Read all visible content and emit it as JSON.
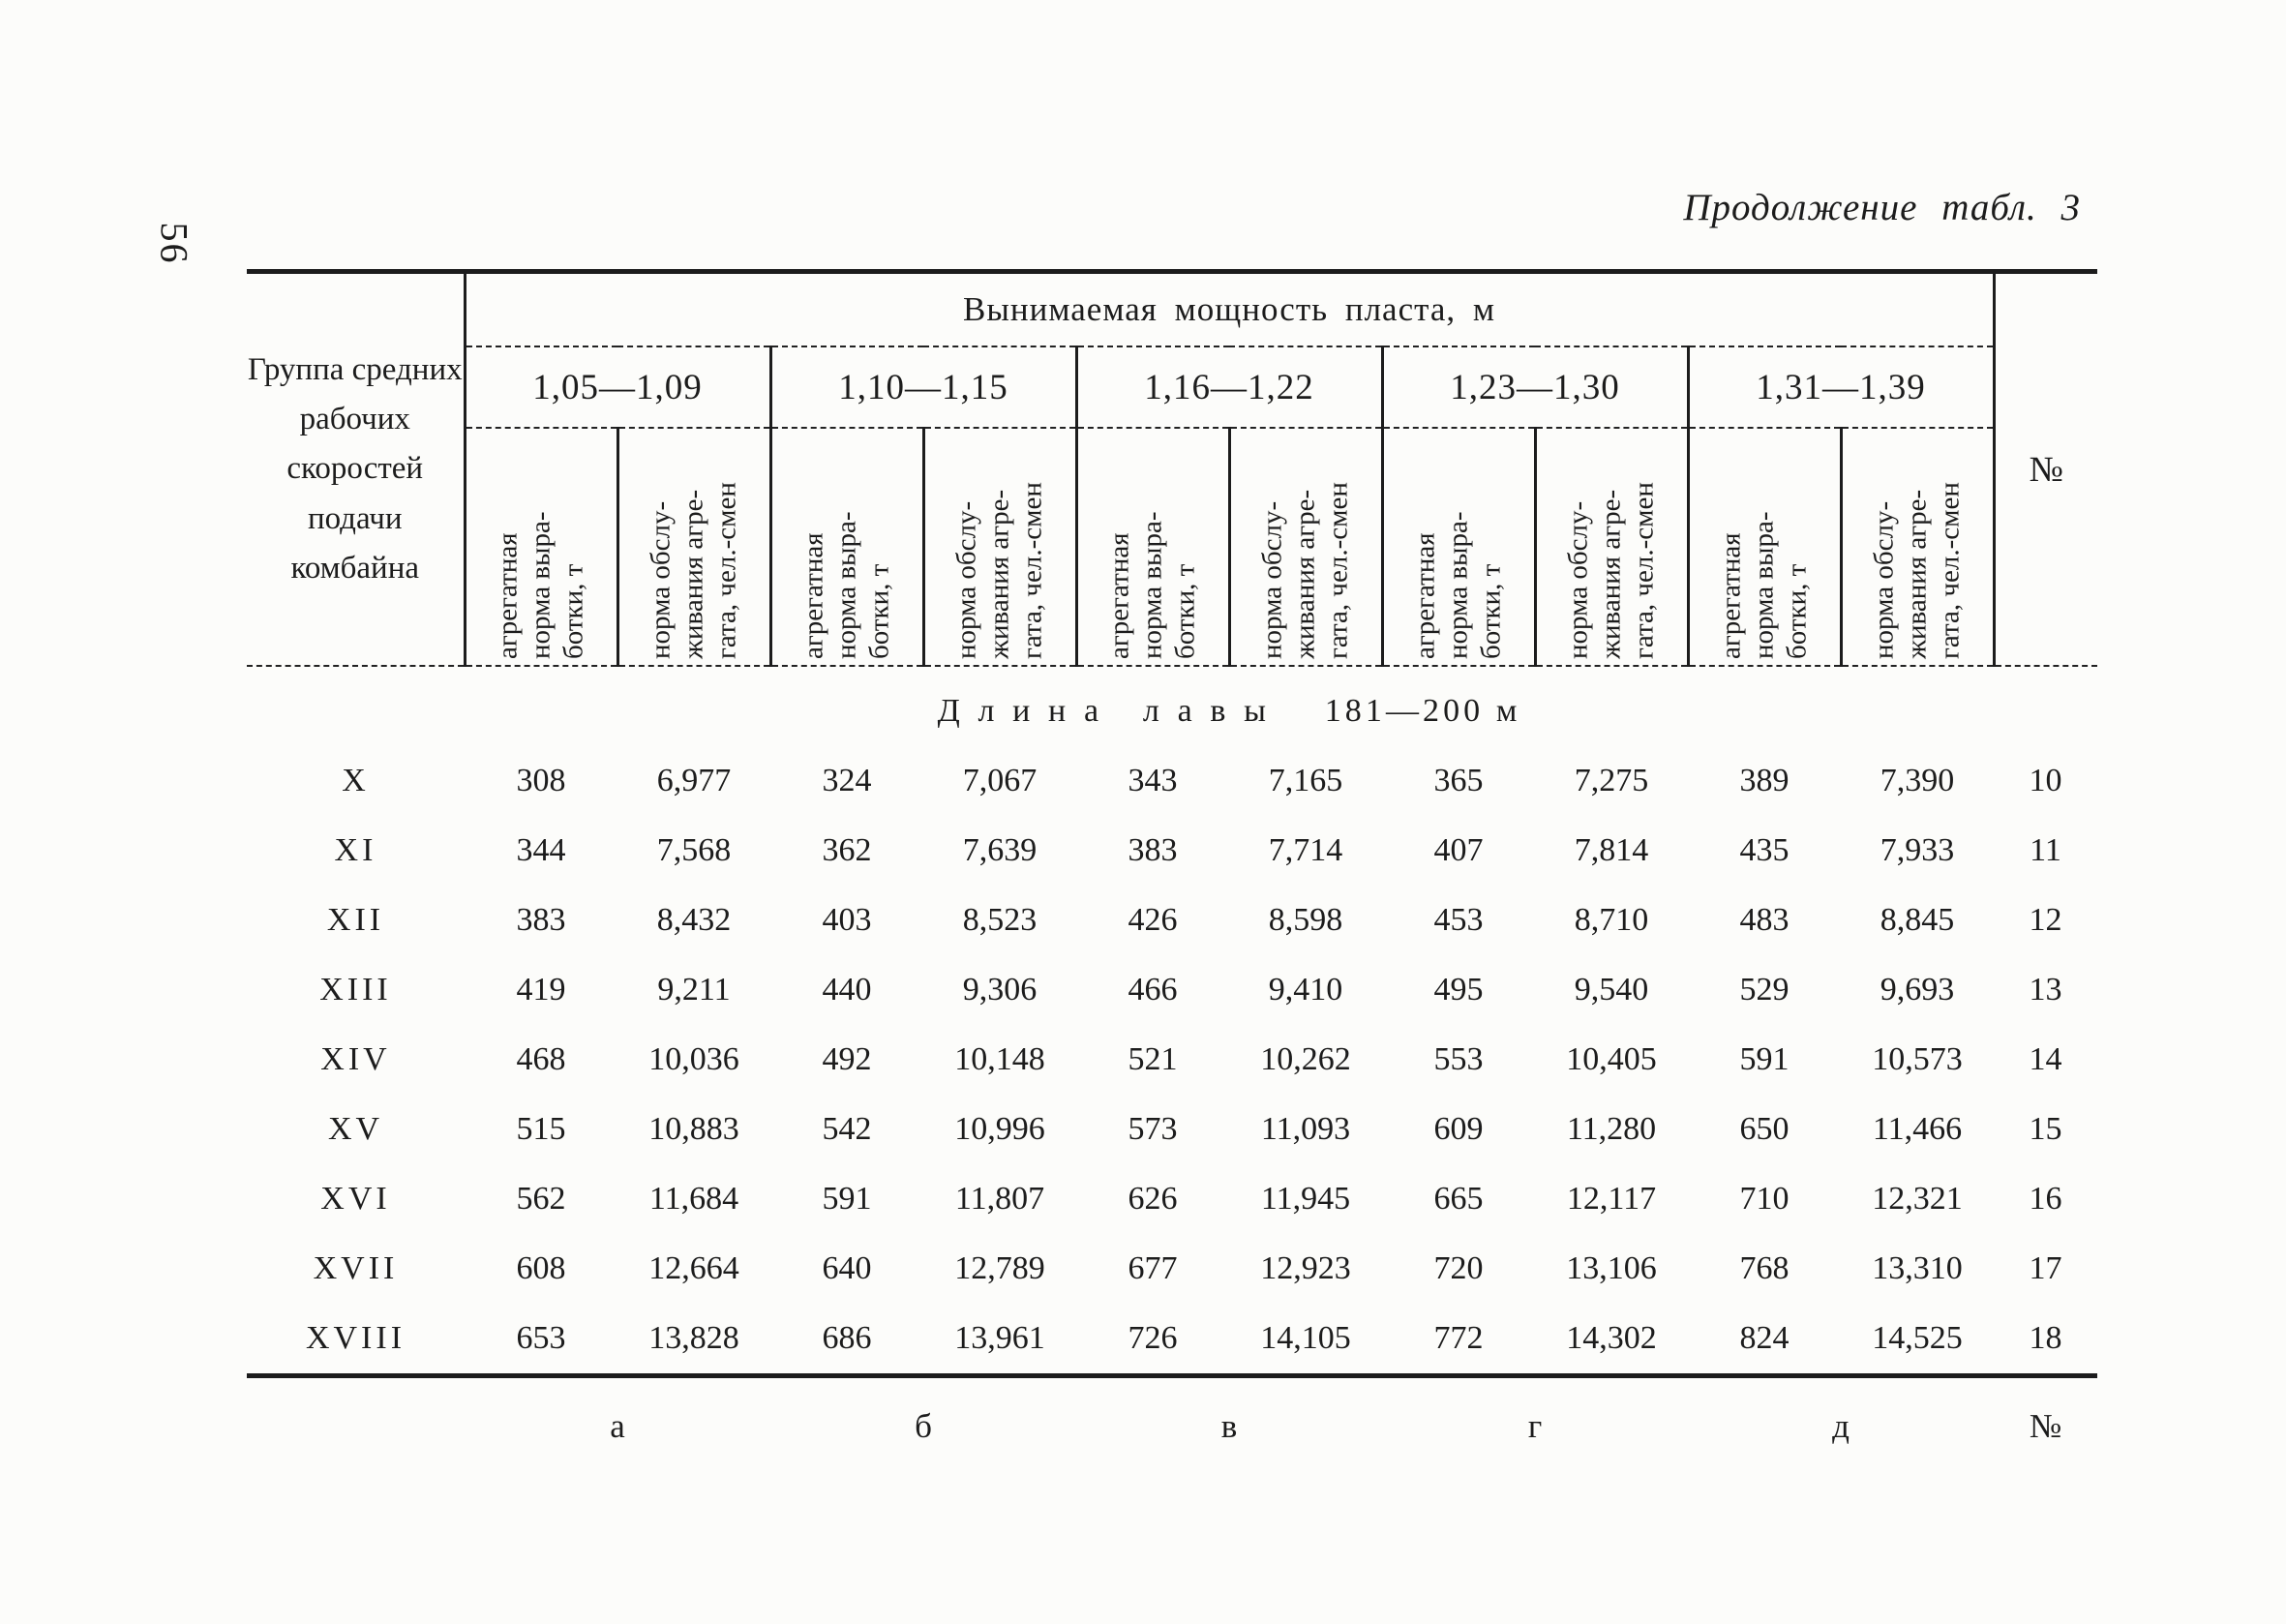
{
  "page": {
    "number": "56",
    "continuation": "Продолжение табл. 3"
  },
  "table": {
    "corner": "Группа средних рабочих скоростей подачи комбайна",
    "span": "Вынимаемая мощность пласта, м",
    "no_col": "№",
    "ranges": [
      "1,05—1,09",
      "1,10—1,15",
      "1,16—1,22",
      "1,23—1,30",
      "1,31—1,39"
    ],
    "sub_output": "агрегатная\nнорма выра-\nботки, т",
    "sub_service": "норма обслу-\nживания агре-\nгата, чел.-смен",
    "section_word": "Длина лавы",
    "section_range": "181—200 м",
    "rows": [
      {
        "label": "X",
        "values": [
          "308",
          "6,977",
          "324",
          "7,067",
          "343",
          "7,165",
          "365",
          "7,275",
          "389",
          "7,390"
        ],
        "no": "10"
      },
      {
        "label": "XI",
        "values": [
          "344",
          "7,568",
          "362",
          "7,639",
          "383",
          "7,714",
          "407",
          "7,814",
          "435",
          "7,933"
        ],
        "no": "11"
      },
      {
        "label": "XII",
        "values": [
          "383",
          "8,432",
          "403",
          "8,523",
          "426",
          "8,598",
          "453",
          "8,710",
          "483",
          "8,845"
        ],
        "no": "12"
      },
      {
        "label": "XIII",
        "values": [
          "419",
          "9,211",
          "440",
          "9,306",
          "466",
          "9,410",
          "495",
          "9,540",
          "529",
          "9,693"
        ],
        "no": "13"
      },
      {
        "label": "XIV",
        "values": [
          "468",
          "10,036",
          "492",
          "10,148",
          "521",
          "10,262",
          "553",
          "10,405",
          "591",
          "10,573"
        ],
        "no": "14"
      },
      {
        "label": "XV",
        "values": [
          "515",
          "10,883",
          "542",
          "10,996",
          "573",
          "11,093",
          "609",
          "11,280",
          "650",
          "11,466"
        ],
        "no": "15"
      },
      {
        "label": "XVI",
        "values": [
          "562",
          "11,684",
          "591",
          "11,807",
          "626",
          "11,945",
          "665",
          "12,117",
          "710",
          "12,321"
        ],
        "no": "16"
      },
      {
        "label": "XVII",
        "values": [
          "608",
          "12,664",
          "640",
          "12,789",
          "677",
          "12,923",
          "720",
          "13,106",
          "768",
          "13,310"
        ],
        "no": "17"
      },
      {
        "label": "XVIII",
        "values": [
          "653",
          "13,828",
          "686",
          "13,961",
          "726",
          "14,105",
          "772",
          "14,302",
          "824",
          "14,525"
        ],
        "no": "18"
      }
    ],
    "footer": [
      "а",
      "б",
      "в",
      "г",
      "д",
      "№"
    ]
  },
  "colors": {
    "paper": "#fcfcfa",
    "ink": "#1c1c1c"
  }
}
